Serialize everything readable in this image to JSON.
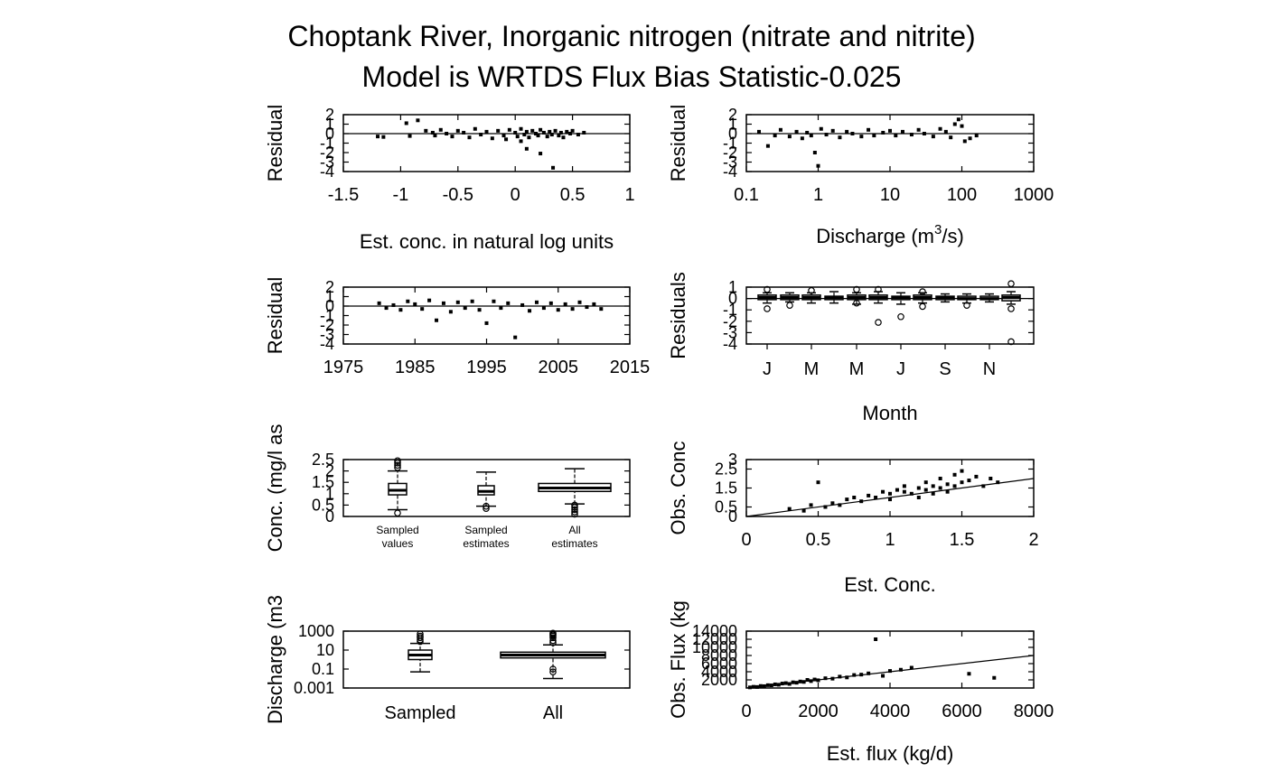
{
  "title": {
    "line1": "Choptank River, Inorganic nitrogen (nitrate and nitrite)",
    "line2": "Model is WRTDS Flux Bias Statistic-0.025"
  },
  "chart_data": [
    {
      "id": "resid-vs-estconc",
      "type": "scatter",
      "xlabel": "Est. conc. in natural log units",
      "ylabel": "Residual",
      "xlim": [
        -1.5,
        1
      ],
      "ylim": [
        -4,
        2
      ],
      "xticks": [
        -1.5,
        -1,
        -0.5,
        0,
        0.5,
        1
      ],
      "yticks": [
        -4,
        -3,
        -2,
        -1,
        0,
        1,
        2
      ],
      "reference_line": {
        "y": 0
      },
      "points": [
        [
          -1.2,
          -0.3
        ],
        [
          -1.15,
          -0.35
        ],
        [
          -0.95,
          1.1
        ],
        [
          -0.92,
          -0.25
        ],
        [
          -0.85,
          1.4
        ],
        [
          -0.78,
          0.3
        ],
        [
          -0.72,
          0.1
        ],
        [
          -0.7,
          -0.2
        ],
        [
          -0.65,
          0.4
        ],
        [
          -0.6,
          0.0
        ],
        [
          -0.55,
          -0.3
        ],
        [
          -0.5,
          0.3
        ],
        [
          -0.45,
          0.1
        ],
        [
          -0.4,
          -0.4
        ],
        [
          -0.35,
          0.5
        ],
        [
          -0.3,
          -0.1
        ],
        [
          -0.25,
          0.2
        ],
        [
          -0.2,
          -0.5
        ],
        [
          -0.15,
          0.3
        ],
        [
          -0.1,
          -0.2
        ],
        [
          -0.05,
          0.4
        ],
        [
          0.0,
          0.1
        ],
        [
          0.02,
          -0.3
        ],
        [
          0.05,
          0.5
        ],
        [
          0.08,
          -0.1
        ],
        [
          0.1,
          0.2
        ],
        [
          0.12,
          -0.4
        ],
        [
          0.15,
          0.3
        ],
        [
          0.18,
          0.0
        ],
        [
          0.2,
          -0.2
        ],
        [
          0.22,
          0.4
        ],
        [
          0.25,
          0.1
        ],
        [
          0.28,
          -0.3
        ],
        [
          0.3,
          0.2
        ],
        [
          0.32,
          -0.1
        ],
        [
          0.35,
          0.3
        ],
        [
          0.38,
          -0.2
        ],
        [
          0.4,
          0.1
        ],
        [
          0.42,
          -0.4
        ],
        [
          0.45,
          0.2
        ],
        [
          0.48,
          0.0
        ],
        [
          0.5,
          0.3
        ],
        [
          0.55,
          -0.1
        ],
        [
          0.6,
          0.1
        ],
        [
          0.1,
          -1.6
        ],
        [
          0.22,
          -2.1
        ],
        [
          0.33,
          -3.6
        ],
        [
          0.05,
          -0.8
        ],
        [
          -0.08,
          -0.6
        ]
      ]
    },
    {
      "id": "resid-vs-discharge",
      "type": "scatter",
      "xlabel": "Discharge (m3/s)",
      "ylabel": "Residual",
      "xscale": "log",
      "xlim": [
        0.1,
        1000
      ],
      "ylim": [
        -4,
        2
      ],
      "xticks": [
        0.1,
        1,
        10,
        100,
        1000
      ],
      "yticks": [
        -4,
        -3,
        -2,
        -1,
        0,
        1,
        2
      ],
      "reference_line": {
        "y": 0
      },
      "points": [
        [
          0.15,
          0.2
        ],
        [
          0.2,
          -1.3
        ],
        [
          0.25,
          -0.2
        ],
        [
          0.3,
          0.4
        ],
        [
          0.4,
          -0.3
        ],
        [
          0.5,
          0.2
        ],
        [
          0.6,
          -0.5
        ],
        [
          0.7,
          0.1
        ],
        [
          0.8,
          -0.2
        ],
        [
          0.9,
          -2.0
        ],
        [
          1.0,
          -3.4
        ],
        [
          1.1,
          0.5
        ],
        [
          1.3,
          -0.1
        ],
        [
          1.6,
          0.3
        ],
        [
          2.0,
          -0.4
        ],
        [
          2.5,
          0.2
        ],
        [
          3.0,
          0.0
        ],
        [
          4.0,
          -0.3
        ],
        [
          5.0,
          0.4
        ],
        [
          6.0,
          -0.2
        ],
        [
          8.0,
          0.1
        ],
        [
          10,
          0.3
        ],
        [
          12,
          -0.2
        ],
        [
          15,
          0.2
        ],
        [
          20,
          -0.1
        ],
        [
          25,
          0.4
        ],
        [
          30,
          0.0
        ],
        [
          40,
          -0.3
        ],
        [
          50,
          0.5
        ],
        [
          60,
          0.2
        ],
        [
          70,
          -0.4
        ],
        [
          80,
          1.0
        ],
        [
          90,
          1.5
        ],
        [
          100,
          0.8
        ],
        [
          110,
          -0.8
        ],
        [
          130,
          -0.5
        ],
        [
          160,
          -0.2
        ]
      ]
    },
    {
      "id": "resid-vs-time",
      "type": "scatter",
      "ylabel": "Residual",
      "xlim": [
        1975,
        2015
      ],
      "ylim": [
        -4,
        2
      ],
      "xticks": [
        1975,
        1985,
        1995,
        2005,
        2015
      ],
      "yticks": [
        -4,
        -3,
        -2,
        -1,
        0,
        1,
        2
      ],
      "reference_line": {
        "y": 0
      },
      "points": [
        [
          1980,
          0.3
        ],
        [
          1981,
          -0.2
        ],
        [
          1982,
          0.1
        ],
        [
          1983,
          -0.4
        ],
        [
          1984,
          0.5
        ],
        [
          1985,
          0.2
        ],
        [
          1986,
          -0.3
        ],
        [
          1987,
          0.6
        ],
        [
          1988,
          -1.5
        ],
        [
          1989,
          0.3
        ],
        [
          1990,
          -0.6
        ],
        [
          1991,
          0.4
        ],
        [
          1992,
          -0.2
        ],
        [
          1993,
          0.5
        ],
        [
          1994,
          -0.4
        ],
        [
          1995,
          -1.8
        ],
        [
          1996,
          0.5
        ],
        [
          1997,
          -0.2
        ],
        [
          1998,
          0.3
        ],
        [
          1999,
          -3.3
        ],
        [
          2000,
          0.1
        ],
        [
          2001,
          -0.5
        ],
        [
          2002,
          0.4
        ],
        [
          2003,
          -0.2
        ],
        [
          2004,
          0.3
        ],
        [
          2005,
          -0.4
        ],
        [
          2006,
          0.2
        ],
        [
          2007,
          -0.3
        ],
        [
          2008,
          0.4
        ],
        [
          2009,
          -0.1
        ],
        [
          2010,
          0.2
        ],
        [
          2011,
          -0.3
        ]
      ]
    },
    {
      "id": "resid-by-month",
      "type": "boxplot",
      "xlabel": "Month",
      "ylabel": "Residuals",
      "ylim": [
        -4,
        1
      ],
      "yticks": [
        -4,
        -3,
        -2,
        -1,
        0,
        1
      ],
      "categories": [
        "J",
        "M",
        "M",
        "J",
        "S",
        "N"
      ],
      "boxes": [
        {
          "med": 0.1,
          "q1": -0.1,
          "q3": 0.3,
          "lo": -0.4,
          "hi": 0.5,
          "out": [
            -0.9,
            0.8
          ]
        },
        {
          "med": 0.1,
          "q1": -0.1,
          "q3": 0.3,
          "lo": -0.3,
          "hi": 0.5,
          "out": [
            -0.6
          ]
        },
        {
          "med": 0.1,
          "q1": -0.1,
          "q3": 0.3,
          "lo": -0.4,
          "hi": 0.5,
          "out": [
            0.7
          ]
        },
        {
          "med": 0.1,
          "q1": -0.1,
          "q3": 0.2,
          "lo": -0.4,
          "hi": 0.6,
          "out": []
        },
        {
          "med": 0.1,
          "q1": -0.1,
          "q3": 0.3,
          "lo": -0.5,
          "hi": 0.5,
          "out": [
            0.8,
            -0.4
          ]
        },
        {
          "med": 0.1,
          "q1": -0.1,
          "q3": 0.3,
          "lo": -0.4,
          "hi": 0.6,
          "out": [
            0.8,
            -2.1
          ]
        },
        {
          "med": 0.1,
          "q1": -0.1,
          "q3": 0.2,
          "lo": -0.5,
          "hi": 0.5,
          "out": [
            -1.6
          ]
        },
        {
          "med": 0.1,
          "q1": -0.1,
          "q3": 0.3,
          "lo": -0.4,
          "hi": 0.5,
          "out": [
            0.6,
            -0.7
          ]
        },
        {
          "med": 0.1,
          "q1": -0.1,
          "q3": 0.2,
          "lo": -0.3,
          "hi": 0.4,
          "out": []
        },
        {
          "med": 0.0,
          "q1": -0.1,
          "q3": 0.2,
          "lo": -0.4,
          "hi": 0.4,
          "out": [
            -0.6
          ]
        },
        {
          "med": 0.0,
          "q1": -0.1,
          "q3": 0.2,
          "lo": -0.3,
          "hi": 0.4,
          "out": []
        },
        {
          "med": 0.1,
          "q1": -0.2,
          "q3": 0.3,
          "lo": -0.5,
          "hi": 0.6,
          "out": [
            1.3,
            -0.9,
            -3.8
          ]
        }
      ]
    },
    {
      "id": "conc-boxplots",
      "type": "boxplot",
      "ylabel": "Conc. (mg/l as",
      "ylim": [
        0,
        2.5
      ],
      "yticks": [
        0.0,
        0.5,
        1.0,
        1.5,
        2.0,
        2.5
      ],
      "categories": [
        "Sampled\nvalues",
        "Sampled\nestimates",
        "All\nestimates"
      ],
      "boxes": [
        {
          "med": 1.15,
          "q1": 0.95,
          "q3": 1.45,
          "lo": 0.3,
          "hi": 2.0,
          "out": [
            2.15,
            2.25,
            2.35,
            2.45,
            0.15
          ]
        },
        {
          "med": 1.1,
          "q1": 0.95,
          "q3": 1.35,
          "lo": 0.45,
          "hi": 1.95,
          "out": [
            0.35,
            0.45
          ]
        },
        {
          "med": 1.25,
          "q1": 1.1,
          "q3": 1.45,
          "lo": 0.55,
          "hi": 2.1,
          "out": [
            0.1,
            0.2,
            0.3,
            0.4,
            0.5
          ]
        }
      ]
    },
    {
      "id": "obs-vs-est-conc",
      "type": "scatter",
      "xlabel": "Est. Conc.",
      "ylabel": "Obs. Conc",
      "xlim": [
        0,
        2
      ],
      "ylim": [
        0,
        3
      ],
      "xticks": [
        0,
        0.5,
        1,
        1.5,
        2
      ],
      "ytick_labels": [
        "0",
        "0.5",
        "1.5",
        "2.5",
        "3"
      ],
      "reference_line": {
        "slope": 1,
        "intercept": 0
      },
      "points": [
        [
          0.3,
          0.4
        ],
        [
          0.4,
          0.3
        ],
        [
          0.45,
          0.6
        ],
        [
          0.5,
          1.8
        ],
        [
          0.55,
          0.5
        ],
        [
          0.6,
          0.7
        ],
        [
          0.65,
          0.6
        ],
        [
          0.7,
          0.9
        ],
        [
          0.75,
          1.0
        ],
        [
          0.8,
          0.8
        ],
        [
          0.85,
          1.1
        ],
        [
          0.9,
          1.0
        ],
        [
          0.95,
          1.3
        ],
        [
          1.0,
          1.2
        ],
        [
          1.0,
          0.9
        ],
        [
          1.05,
          1.4
        ],
        [
          1.1,
          1.3
        ],
        [
          1.1,
          1.6
        ],
        [
          1.15,
          1.2
        ],
        [
          1.2,
          1.5
        ],
        [
          1.2,
          1.0
        ],
        [
          1.25,
          1.4
        ],
        [
          1.25,
          1.8
        ],
        [
          1.3,
          1.6
        ],
        [
          1.3,
          1.2
        ],
        [
          1.35,
          2.0
        ],
        [
          1.35,
          1.5
        ],
        [
          1.4,
          1.7
        ],
        [
          1.4,
          1.3
        ],
        [
          1.45,
          2.2
        ],
        [
          1.45,
          1.6
        ],
        [
          1.5,
          2.4
        ],
        [
          1.5,
          1.8
        ],
        [
          1.55,
          1.9
        ],
        [
          1.6,
          2.1
        ],
        [
          1.65,
          1.6
        ],
        [
          1.7,
          2.0
        ],
        [
          1.75,
          1.8
        ]
      ]
    },
    {
      "id": "discharge-boxplots",
      "type": "boxplot",
      "ylabel": "Discharge (m3",
      "yscale": "log",
      "ylim": [
        0.001,
        1000
      ],
      "yticks": [
        0.001,
        0.1,
        10,
        1000
      ],
      "categories": [
        "Sampled",
        "All"
      ],
      "boxes": [
        {
          "med": 3,
          "q1": 1,
          "q3": 10,
          "lo": 0.05,
          "hi": 50,
          "out": [
            80,
            120,
            200,
            300,
            500
          ]
        },
        {
          "med": 3,
          "q1": 1.5,
          "q3": 6,
          "lo": 0.01,
          "hi": 35,
          "out": [
            60,
            100,
            200,
            300,
            400,
            500,
            600,
            0.05,
            0.1
          ]
        }
      ]
    },
    {
      "id": "obs-vs-est-flux",
      "type": "scatter",
      "xlabel": "Est. flux (kg/d)",
      "ylabel": "Obs. Flux (kg",
      "xlim": [
        0,
        8000
      ],
      "ylim": [
        0,
        14000
      ],
      "xticks": [
        0,
        2000,
        4000,
        6000,
        8000
      ],
      "yticks": [
        2000,
        4000,
        6000,
        8000,
        10000,
        12000,
        14000
      ],
      "reference_line": {
        "slope": 1,
        "intercept": 0
      },
      "points": [
        [
          100,
          150
        ],
        [
          200,
          300
        ],
        [
          300,
          250
        ],
        [
          400,
          500
        ],
        [
          500,
          450
        ],
        [
          600,
          700
        ],
        [
          700,
          650
        ],
        [
          800,
          900
        ],
        [
          900,
          800
        ],
        [
          1000,
          1100
        ],
        [
          1100,
          1200
        ],
        [
          1200,
          1000
        ],
        [
          1300,
          1400
        ],
        [
          1400,
          1300
        ],
        [
          1500,
          1600
        ],
        [
          1600,
          1500
        ],
        [
          1700,
          2000
        ],
        [
          1800,
          1700
        ],
        [
          1900,
          2100
        ],
        [
          2000,
          1900
        ],
        [
          2200,
          2400
        ],
        [
          2400,
          2300
        ],
        [
          2600,
          2800
        ],
        [
          2800,
          2600
        ],
        [
          3000,
          3200
        ],
        [
          3200,
          3300
        ],
        [
          3400,
          3600
        ],
        [
          3600,
          12000
        ],
        [
          3800,
          3000
        ],
        [
          4000,
          4200
        ],
        [
          4300,
          4500
        ],
        [
          4600,
          5000
        ],
        [
          6200,
          3500
        ],
        [
          6900,
          2500
        ]
      ]
    }
  ]
}
